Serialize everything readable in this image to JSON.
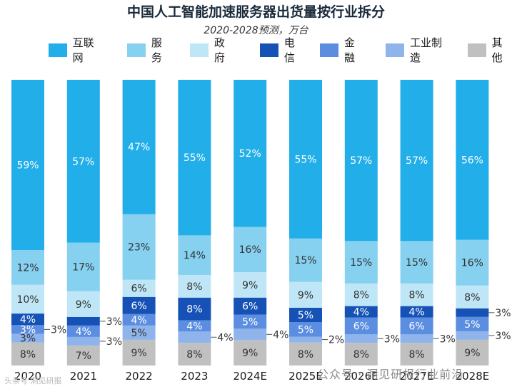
{
  "chart_data": {
    "type": "bar",
    "stacked": true,
    "title": "中国人工智能加速服务器出货量按行业拆分",
    "subtitle": "2020-2028预测，万台",
    "categories": [
      "2020",
      "2021",
      "2022",
      "2023",
      "2024E",
      "2025E",
      "2026E",
      "2027E",
      "2028E"
    ],
    "series": [
      {
        "name": "其他",
        "color": "#c0c0c0",
        "values": [
          8,
          7,
          9,
          8,
          9,
          8,
          8,
          8,
          9
        ]
      },
      {
        "name": "工业制造",
        "color": "#8fb4ec",
        "values": [
          3,
          3,
          5,
          4,
          4,
          2,
          3,
          3,
          3
        ]
      },
      {
        "name": "金融",
        "color": "#5b8ee0",
        "values": [
          3,
          4,
          4,
          4,
          5,
          5,
          6,
          6,
          5
        ]
      },
      {
        "name": "电信",
        "color": "#1652b6",
        "values": [
          4,
          3,
          6,
          8,
          6,
          5,
          4,
          4,
          3
        ]
      },
      {
        "name": "政府",
        "color": "#bfe6f6",
        "values": [
          10,
          9,
          6,
          8,
          9,
          9,
          8,
          8,
          8
        ]
      },
      {
        "name": "服务",
        "color": "#86d0f0",
        "values": [
          12,
          17,
          23,
          14,
          16,
          15,
          15,
          15,
          16
        ]
      },
      {
        "name": "互联网",
        "color": "#22aee8",
        "values": [
          59,
          57,
          47,
          55,
          52,
          55,
          57,
          57,
          56
        ]
      }
    ],
    "legend_order": [
      "互联网",
      "服务",
      "政府",
      "电信",
      "金融",
      "工业制造",
      "其他"
    ],
    "ylim": [
      0,
      100
    ],
    "grid": false,
    "legend_position": "top"
  },
  "watermark": "公众号 · 洞见研报行业前沿",
  "source_mark": "头条号 洞见研报"
}
